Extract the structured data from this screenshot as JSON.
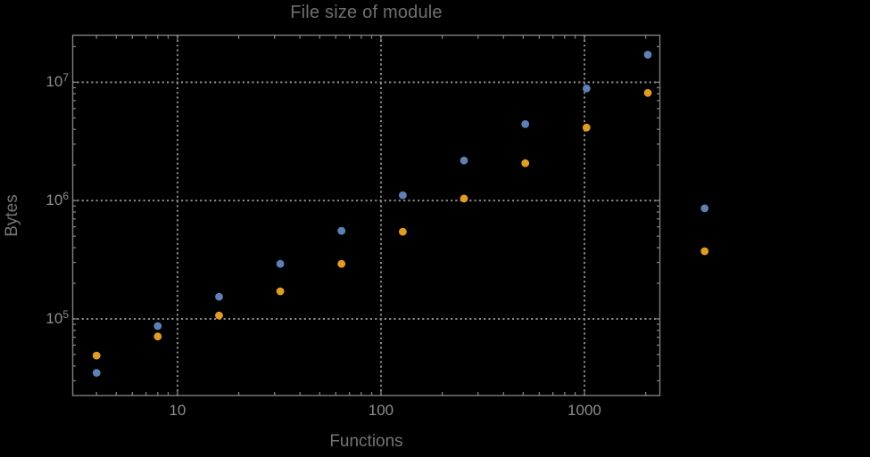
{
  "window": {
    "background": "#000000"
  },
  "chart_data": {
    "type": "scatter",
    "title": "File size of module",
    "xlabel": "Functions",
    "ylabel": "Bytes",
    "x_scale": "log",
    "y_scale": "log",
    "xlim": [
      3.04,
      2360
    ],
    "ylim": [
      22500,
      25000000
    ],
    "grid": {
      "style": "dotted",
      "color": "#8A8A8A",
      "x_values": [
        10,
        100,
        1000
      ],
      "y_values": [
        100000,
        1000000,
        10000000
      ]
    },
    "frame_color": "#7E7E7E",
    "title_color": "#6F6F6F",
    "label_color": "#747474",
    "tick_label_color": "#8D8D8D",
    "x_tick_labels": [
      {
        "value": 10,
        "label": "10"
      },
      {
        "value": 100,
        "label": "100"
      },
      {
        "value": 1000,
        "label": "1000"
      }
    ],
    "y_tick_labels": [
      {
        "value": 100000,
        "base": "10",
        "exp": "5"
      },
      {
        "value": 1000000,
        "base": "10",
        "exp": "6"
      },
      {
        "value": 10000000,
        "base": "10",
        "exp": "7"
      }
    ],
    "legend": "none",
    "series": [
      {
        "name": "series-1-blue",
        "color": "#5E81B5",
        "points": [
          [
            4,
            35000
          ],
          [
            8,
            87000
          ],
          [
            16,
            154000
          ],
          [
            32,
            292000
          ],
          [
            64,
            555000
          ],
          [
            128,
            1110000
          ],
          [
            256,
            2180000
          ],
          [
            512,
            4430000
          ],
          [
            1024,
            8860000
          ],
          [
            2048,
            17100000
          ],
          [
            3900,
            860000
          ]
        ]
      },
      {
        "name": "series-2-orange",
        "color": "#E19C24",
        "points": [
          [
            4,
            49000
          ],
          [
            8,
            71000
          ],
          [
            16,
            107000
          ],
          [
            32,
            171000
          ],
          [
            64,
            292000
          ],
          [
            128,
            546000
          ],
          [
            256,
            1040000
          ],
          [
            512,
            2070000
          ],
          [
            1024,
            4140000
          ],
          [
            2048,
            8130000
          ],
          [
            3900,
            373000
          ]
        ]
      }
    ]
  }
}
